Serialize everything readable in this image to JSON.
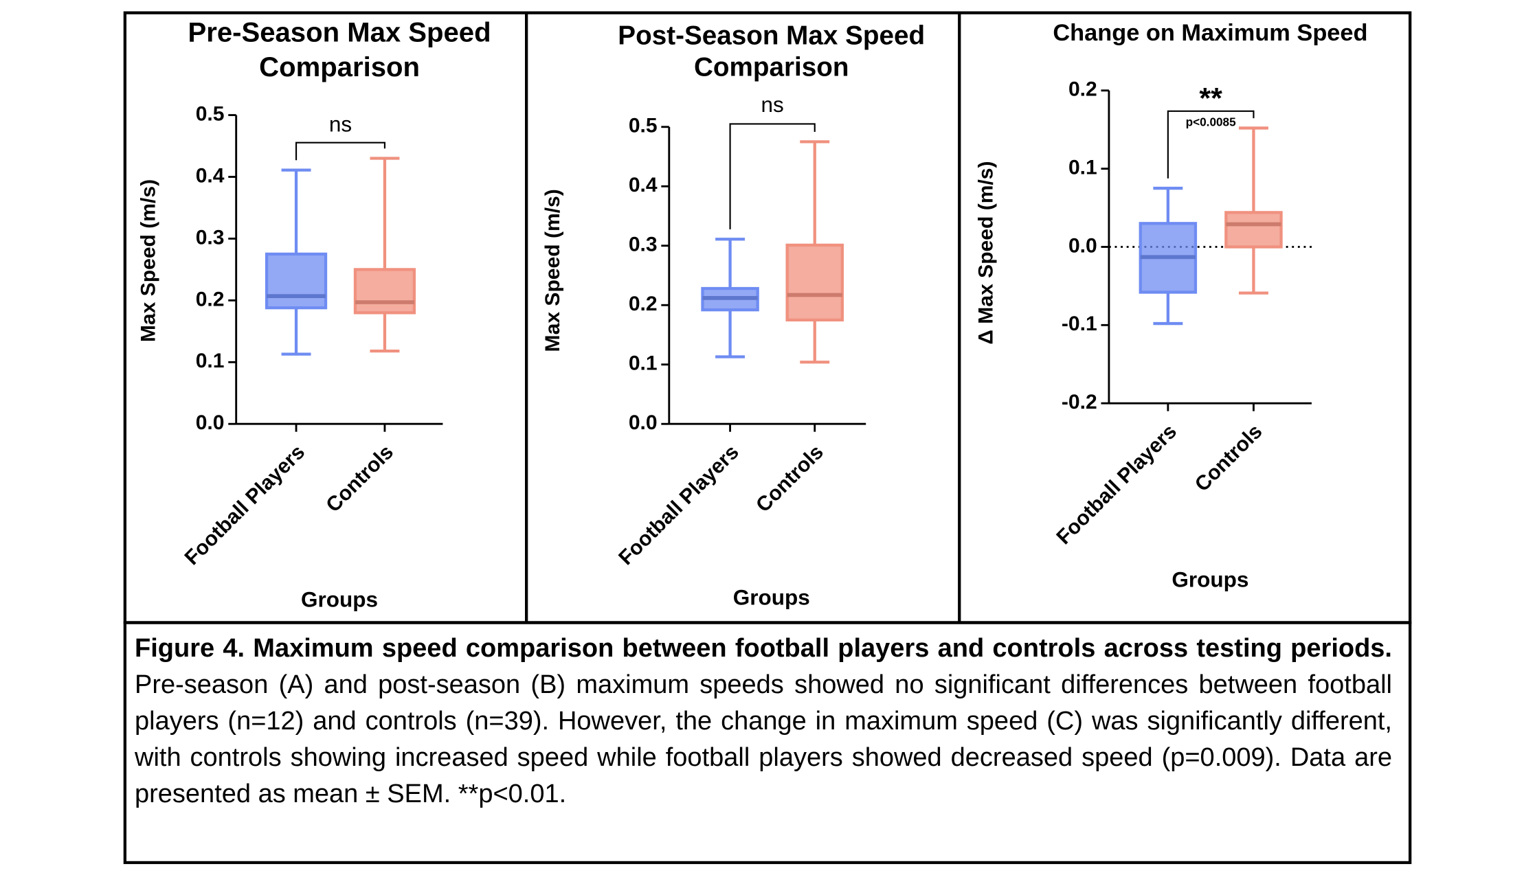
{
  "chart_data": [
    {
      "type": "box",
      "title": [
        "Pre-Season Max Speed",
        "Comparison"
      ],
      "ylabel": "Max Speed (m/s)",
      "xlabel": "Groups",
      "categories": [
        "Football Players",
        "Controls"
      ],
      "boxes": [
        {
          "min": 0.113,
          "q1": 0.188,
          "median": 0.207,
          "q3": 0.275,
          "max": 0.411,
          "color": "#6f8cf2"
        },
        {
          "min": 0.118,
          "q1": 0.18,
          "median": 0.197,
          "q3": 0.25,
          "max": 0.43,
          "color": "#f0917f"
        }
      ],
      "ylim": [
        0,
        0.5
      ],
      "yticks": [
        {
          "value": 0,
          "label": "0.0"
        },
        0.1,
        0.2,
        0.3,
        0.4,
        0.5
      ],
      "annotation": "ns"
    },
    {
      "type": "box",
      "title": [
        "Post-Season Max Speed",
        "Comparison"
      ],
      "ylabel": "Max Speed (m/s)",
      "xlabel": "Groups",
      "categories": [
        "Football Players",
        "Controls"
      ],
      "boxes": [
        {
          "min": 0.113,
          "q1": 0.192,
          "median": 0.212,
          "q3": 0.228,
          "max": 0.311,
          "color": "#6f8cf2"
        },
        {
          "min": 0.104,
          "q1": 0.175,
          "median": 0.217,
          "q3": 0.301,
          "max": 0.475,
          "color": "#f0917f"
        }
      ],
      "ylim": [
        0,
        0.5
      ],
      "yticks": [
        {
          "value": 0,
          "label": "0.0"
        },
        0.1,
        0.2,
        0.3,
        0.4,
        0.5
      ],
      "annotation": "ns"
    },
    {
      "type": "box",
      "title": [
        "Change on Maximum Speed"
      ],
      "ylabel": "Δ Max Speed (m/s)",
      "xlabel": "Groups",
      "categories": [
        "Football Players",
        "Controls"
      ],
      "boxes": [
        {
          "min": -0.098,
          "q1": -0.058,
          "median": -0.013,
          "q3": 0.03,
          "max": 0.075,
          "color": "#6f8cf2"
        },
        {
          "min": -0.059,
          "q1": 0.0,
          "median": 0.029,
          "q3": 0.044,
          "max": 0.152,
          "color": "#f0917f"
        }
      ],
      "ylim": [
        -0.2,
        0.2
      ],
      "yticks": [
        -0.2,
        -0.1,
        {
          "value": 0,
          "label": "0.0"
        },
        0.1,
        0.2
      ],
      "annotation": "**",
      "annotation_detail": "p<0.0085",
      "zero_line": true
    }
  ],
  "caption": {
    "label": "Figure 4. Maximum speed comparison between football players and controls across testing periods.",
    "text": "Pre-season (A) and post-season (B) maximum speeds showed no significant differences between football players (n=12) and controls (n=39). However, the change in maximum speed (C) was significantly different, with controls showing increased speed while football players showed decreased speed (p=0.009). Data are presented as mean ± SEM. **p<0.01."
  }
}
